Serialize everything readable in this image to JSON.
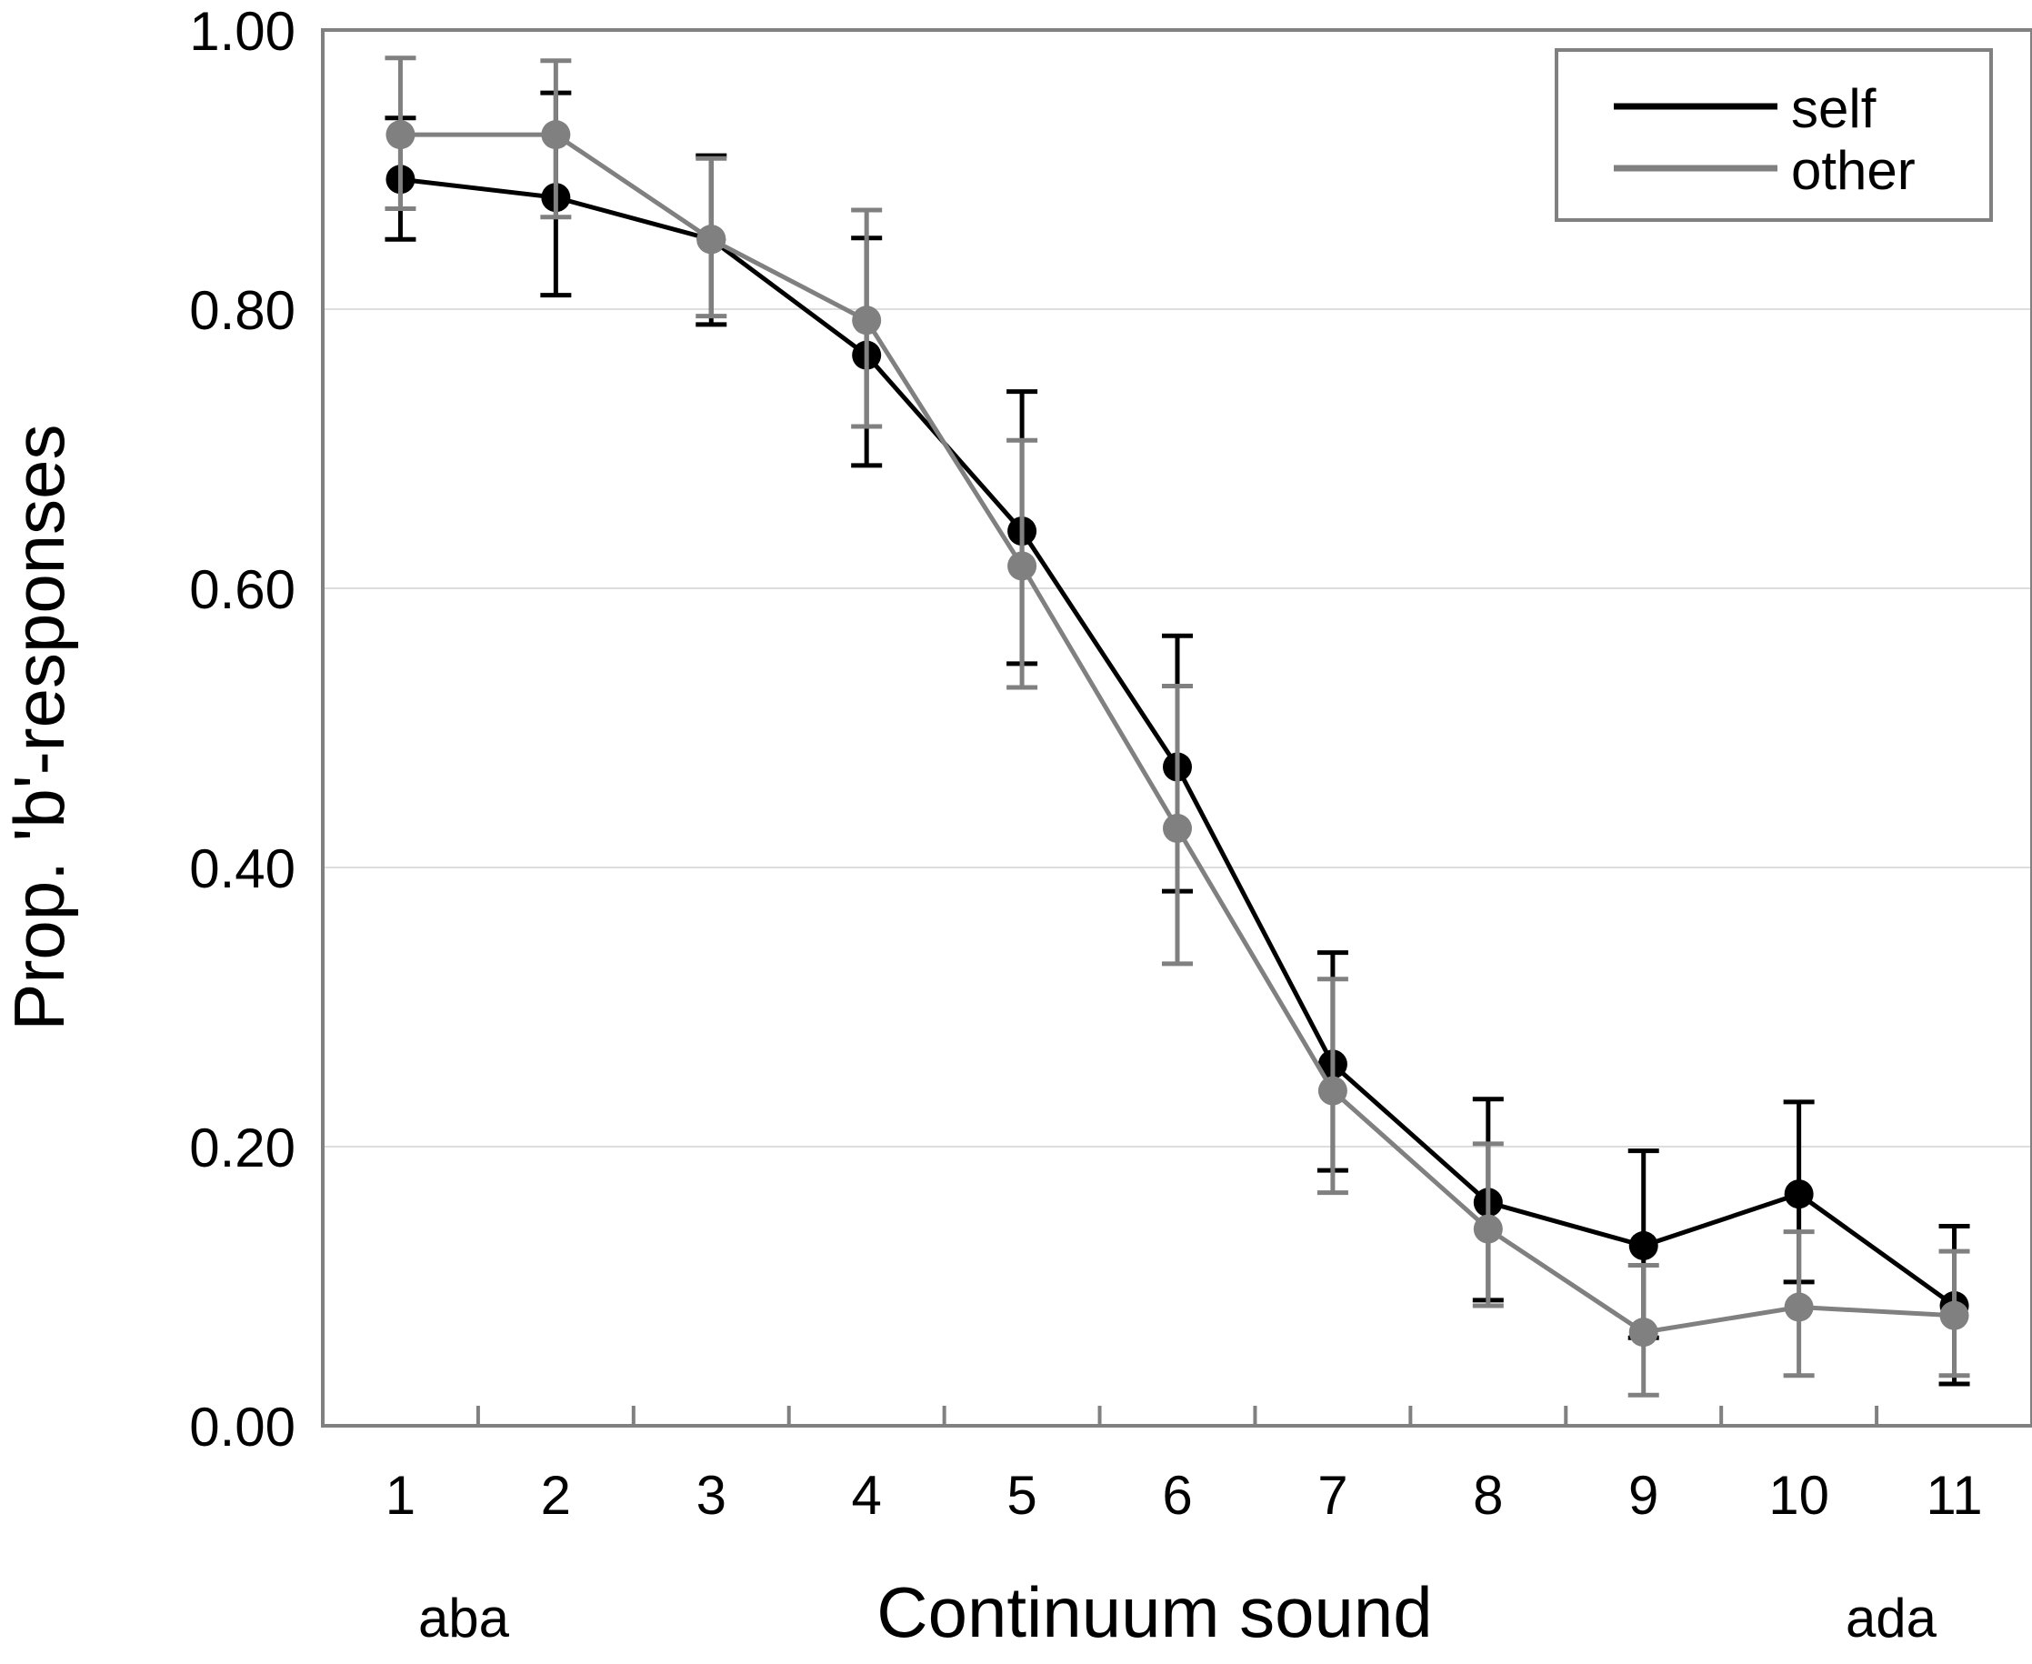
{
  "chart_data": {
    "type": "line",
    "title": "",
    "xlabel": "Continuum sound",
    "ylabel": "Prop. 'b'-responses",
    "x": [
      1,
      2,
      3,
      4,
      5,
      6,
      7,
      8,
      9,
      10,
      11
    ],
    "x_tick_labels": [
      "1",
      "2",
      "3",
      "4",
      "5",
      "6",
      "7",
      "8",
      "9",
      "10",
      "11"
    ],
    "y_tick_labels": [
      "0.00",
      "0.20",
      "0.40",
      "0.60",
      "0.80",
      "1.00"
    ],
    "y_ticks": [
      0,
      0.2,
      0.4,
      0.6,
      0.8,
      1.0
    ],
    "ylim": [
      0,
      1.0
    ],
    "xlim": [
      0.5,
      11.5
    ],
    "grid": true,
    "legend_position": "top-right",
    "endpoint_labels": {
      "left": "aba",
      "right": "ada"
    },
    "series": [
      {
        "name": "self",
        "color": "#000000",
        "values": [
          0.893,
          0.88,
          0.85,
          0.767,
          0.641,
          0.472,
          0.259,
          0.16,
          0.129,
          0.166,
          0.086
        ],
        "err_low": [
          0.85,
          0.81,
          0.789,
          0.688,
          0.546,
          0.383,
          0.183,
          0.09,
          0.063,
          0.103,
          0.03
        ],
        "err_high": [
          0.937,
          0.955,
          0.91,
          0.851,
          0.741,
          0.566,
          0.339,
          0.234,
          0.197,
          0.232,
          0.143
        ]
      },
      {
        "name": "other",
        "color": "#808080",
        "values": [
          0.925,
          0.925,
          0.85,
          0.792,
          0.616,
          0.428,
          0.24,
          0.141,
          0.067,
          0.085,
          0.079
        ],
        "err_low": [
          0.872,
          0.866,
          0.795,
          0.716,
          0.529,
          0.331,
          0.167,
          0.086,
          0.022,
          0.036,
          0.036
        ],
        "err_high": [
          0.98,
          0.978,
          0.908,
          0.871,
          0.706,
          0.53,
          0.32,
          0.202,
          0.115,
          0.139,
          0.125
        ]
      }
    ]
  }
}
